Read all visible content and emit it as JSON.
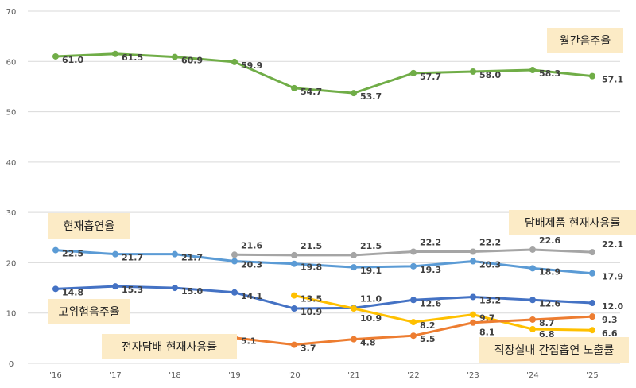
{
  "chart_data": {
    "type": "line",
    "categories": [
      "'16",
      "'17",
      "'18",
      "'19",
      "'20",
      "'21",
      "'22",
      "'23",
      "'24",
      "'25"
    ],
    "ylim": [
      0,
      70
    ],
    "yticks": [
      0,
      10,
      20,
      30,
      40,
      50,
      60,
      70
    ],
    "grid": true,
    "series": [
      {
        "name": "월간음주율",
        "color": "#70AD47",
        "values": [
          61.0,
          61.5,
          60.9,
          59.9,
          54.7,
          53.7,
          57.7,
          58.0,
          58.3,
          57.1
        ]
      },
      {
        "name": "담배제품 현재사용률",
        "color": "#A5A5A5",
        "values": [
          null,
          null,
          null,
          21.6,
          21.5,
          21.5,
          22.2,
          22.2,
          22.6,
          22.1
        ]
      },
      {
        "name": "현재흡연율",
        "color": "#5B9BD5",
        "values": [
          22.5,
          21.7,
          21.7,
          20.3,
          19.8,
          19.1,
          19.3,
          20.3,
          18.9,
          17.9
        ]
      },
      {
        "name": "고위험음주율",
        "color": "#4472C4",
        "values": [
          14.8,
          15.3,
          15.0,
          14.1,
          10.9,
          11.0,
          12.6,
          13.2,
          12.6,
          12.0
        ]
      },
      {
        "name": "직장실내 간접흡연 노출률",
        "color": "#FFC000",
        "values": [
          null,
          null,
          null,
          null,
          13.5,
          10.9,
          8.2,
          9.7,
          6.8,
          6.6
        ]
      },
      {
        "name": "전자담배 현재사용률",
        "color": "#ED7D31",
        "values": [
          null,
          null,
          null,
          5.1,
          3.7,
          4.8,
          5.5,
          8.1,
          8.7,
          9.3
        ]
      }
    ],
    "label_box_color": "#FCEBC6"
  }
}
